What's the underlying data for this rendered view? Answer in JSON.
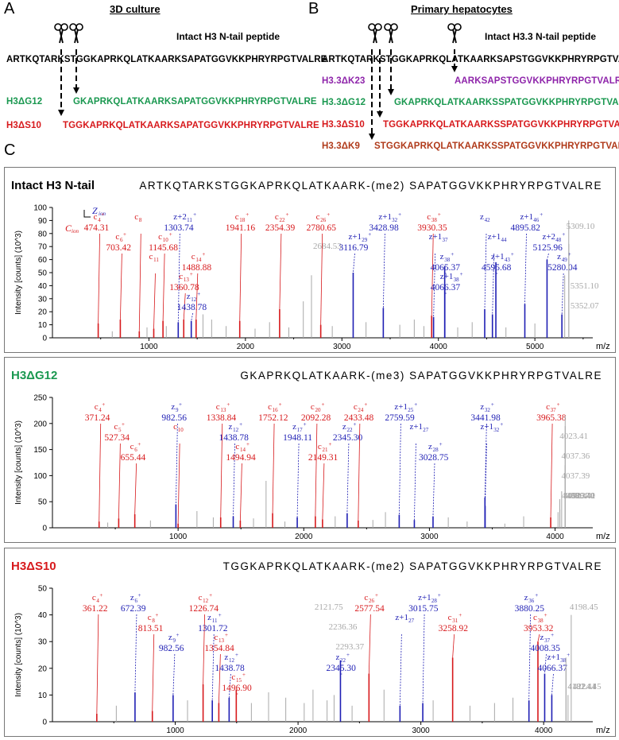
{
  "panelA": {
    "letter": "A",
    "title": "3D culture",
    "intact_label": "Intact H3 N-tail peptide",
    "sequence": "ARTKQTARKSTGGKAPRKQLATKAARKSAPATGGVKKPHRYRPGTVALRE",
    "rows": [
      {
        "label": "H3ΔG12",
        "seq": "GKAPRKQLATKAARKSAPATGGVKKPHRYRPGTVALRE",
        "color": "#1a9850"
      },
      {
        "label": "H3ΔS10",
        "seq": "TGGKAPRKQLATKAARKSAPATGGVKKPHRYRPGTVALRE",
        "color": "#d7191c"
      }
    ]
  },
  "panelB": {
    "letter": "B",
    "title": "Primary hepatocytes",
    "intact_label": "Intact H3.3 N-tail peptide",
    "sequence": "ARTKQTARKSTGGKAPRKQLATKAARKSAPSTGGVKKPHRYRPGTVALRE",
    "rows": [
      {
        "label": "H3.3ΔK23",
        "seq": "AARKSAPSTGGVKKPHRYRPGTVALRE",
        "color": "#8e24aa"
      },
      {
        "label": "H3.3ΔG12",
        "seq": "GKAPRKQLATKAARKSSPATGGVKKPHRYRPGTVALRE",
        "color": "#1a9850"
      },
      {
        "label": "H3.3ΔS10",
        "seq": "TGGKAPRKQLATKAARKSSPATGGVKKPHRYRPGTVALRE",
        "color": "#d7191c"
      },
      {
        "label": "H3.3ΔK9",
        "seq": "STGGKAPRKQLATKAARKSSPATGGVKKPHRYRPGTVALRE",
        "color": "#b03a1a"
      }
    ]
  },
  "panelC": {
    "letter": "C"
  },
  "colors": {
    "c_ion": "#d7191c",
    "z_ion": "#1f1fb4",
    "other": "#a8a8a8"
  },
  "chart_data": [
    {
      "type": "bar",
      "title": "Intact H3 N-tail",
      "title_color": "#000000",
      "sequence_annotation": "ARTKQTARKSTGGKAPRKQLATKAARK-(me2) SAPATGGVKKPHRYRPGTVALRE",
      "ylabel": "Intensity [counts] (10^3)",
      "xlabel": "m/z",
      "ylim": [
        0,
        100
      ],
      "yticks": [
        0,
        10,
        20,
        30,
        40,
        50,
        60,
        70,
        80,
        90,
        100
      ],
      "xlim": [
        0,
        5600
      ],
      "xticks": [
        1000,
        2000,
        3000,
        4000,
        5000
      ],
      "legend": {
        "c": "C",
        "c_sub": "ion",
        "z": "Z",
        "z_sub": "ion"
      },
      "peaks": [
        {
          "mz": 474.31,
          "i": 11,
          "t": "c",
          "name": "c",
          "sub": "4",
          "sup": "+"
        },
        {
          "mz": 703.42,
          "i": 14,
          "t": "c",
          "name": "c",
          "sub": "6",
          "sup": "+"
        },
        {
          "mz": 900,
          "i": 5,
          "t": "c",
          "name": "c",
          "sub": "8",
          "sup": ""
        },
        {
          "mz": 1050,
          "i": 7,
          "t": "c",
          "name": "c",
          "sub": "11",
          "sup": ""
        },
        {
          "mz": 1145.68,
          "i": 13,
          "t": "c",
          "name": "c",
          "sub": "10",
          "sup": "+"
        },
        {
          "mz": 1303.74,
          "i": 12,
          "t": "z",
          "name": "z+2",
          "sub": "11",
          "sup": "+"
        },
        {
          "mz": 1360.78,
          "i": 14,
          "t": "c",
          "name": "c",
          "sub": "13",
          "sup": "+"
        },
        {
          "mz": 1438.78,
          "i": 13,
          "t": "z",
          "name": "z",
          "sub": "12",
          "sup": "+"
        },
        {
          "mz": 1488.88,
          "i": 14,
          "t": "c",
          "name": "c",
          "sub": "14",
          "sup": "+"
        },
        {
          "mz": 1941.16,
          "i": 13,
          "t": "c",
          "name": "c",
          "sub": "18",
          "sup": "+"
        },
        {
          "mz": 2354.39,
          "i": 22,
          "t": "c",
          "name": "c",
          "sub": "22",
          "sup": "+"
        },
        {
          "mz": 2684.53,
          "i": 48,
          "t": "o",
          "name": "2684.53"
        },
        {
          "mz": 2780.65,
          "i": 10,
          "t": "c",
          "name": "c",
          "sub": "26",
          "sup": "+"
        },
        {
          "mz": 3116.79,
          "i": 50,
          "t": "z",
          "name": "z+1",
          "sub": "29",
          "sup": "+"
        },
        {
          "mz": 3428.98,
          "i": 23,
          "t": "z",
          "name": "z+1",
          "sub": "32",
          "sup": "+"
        },
        {
          "mz": 3930.35,
          "i": 17,
          "t": "c",
          "name": "c",
          "sub": "38",
          "sup": "+"
        },
        {
          "mz": 3950,
          "i": 16,
          "t": "z",
          "name": "z+1",
          "sub": "37",
          "sup": ""
        },
        {
          "mz": 4065.37,
          "i": 55,
          "t": "z",
          "name": "z",
          "sub": "38",
          "sup": "+"
        },
        {
          "mz": 4066.37,
          "i": 38,
          "t": "z",
          "name": "z+1",
          "sub": "38",
          "sup": "+"
        },
        {
          "mz": 4480,
          "i": 22,
          "t": "z",
          "name": "z",
          "sub": "42",
          "sup": ""
        },
        {
          "mz": 4560,
          "i": 18,
          "t": "z",
          "name": "z+1",
          "sub": "44",
          "sup": ""
        },
        {
          "mz": 4595.68,
          "i": 58,
          "t": "z",
          "name": "z+1",
          "sub": "43",
          "sup": "+"
        },
        {
          "mz": 4895.82,
          "i": 26,
          "t": "z",
          "name": "z+1",
          "sub": "46",
          "sup": "+"
        },
        {
          "mz": 5125.96,
          "i": 60,
          "t": "z",
          "name": "z+2",
          "sub": "48",
          "sup": "+"
        },
        {
          "mz": 5280.04,
          "i": 18,
          "t": "z",
          "name": "z",
          "sub": "49",
          "sup": "+"
        },
        {
          "mz": 5309.1,
          "i": 48,
          "t": "o",
          "name": "5309.10"
        },
        {
          "mz": 5351.1,
          "i": 90,
          "t": "o",
          "name": "5351.10"
        },
        {
          "mz": 5352.07,
          "i": 72,
          "t": "o",
          "name": "5352.07"
        }
      ],
      "noise": [
        [
          620,
          5
        ],
        [
          980,
          8
        ],
        [
          1180,
          9
        ],
        [
          1560,
          18
        ],
        [
          1650,
          14
        ],
        [
          1800,
          9
        ],
        [
          2100,
          7
        ],
        [
          2250,
          12
        ],
        [
          2450,
          8
        ],
        [
          2600,
          28
        ],
        [
          2900,
          9
        ],
        [
          3250,
          12
        ],
        [
          3600,
          10
        ],
        [
          3750,
          14
        ],
        [
          3850,
          9
        ],
        [
          4200,
          8
        ],
        [
          4350,
          12
        ],
        [
          4700,
          8
        ],
        [
          5000,
          11
        ]
      ]
    },
    {
      "type": "bar",
      "title": "H3ΔG12",
      "title_color": "#1a9850",
      "sequence_annotation": "GKAPRKQLATKAARK-(me3) SAPATGGVKKPHRYRPGTVALRE",
      "ylabel": "Intensity [counts] (10^3)",
      "xlabel": "m/z",
      "ylim": [
        0,
        250
      ],
      "yticks": [
        0,
        50,
        100,
        150,
        200,
        250
      ],
      "xlim": [
        0,
        4300
      ],
      "xticks": [
        1000,
        2000,
        3000,
        4000
      ],
      "peaks": [
        {
          "mz": 371.24,
          "i": 12,
          "t": "c",
          "name": "c",
          "sub": "4",
          "sup": "+"
        },
        {
          "mz": 527.34,
          "i": 18,
          "t": "c",
          "name": "c",
          "sub": "5",
          "sup": "+"
        },
        {
          "mz": 655.44,
          "i": 26,
          "t": "c",
          "name": "c",
          "sub": "6",
          "sup": "+"
        },
        {
          "mz": 982.56,
          "i": 45,
          "t": "z",
          "name": "z",
          "sub": "9",
          "sup": "+"
        },
        {
          "mz": 1000,
          "i": 8,
          "t": "c",
          "name": "c",
          "sub": "10",
          "sup": ""
        },
        {
          "mz": 1338.84,
          "i": 20,
          "t": "c",
          "name": "c",
          "sub": "13",
          "sup": "+"
        },
        {
          "mz": 1438.78,
          "i": 22,
          "t": "z",
          "name": "z",
          "sub": "12",
          "sup": "+"
        },
        {
          "mz": 1494.94,
          "i": 14,
          "t": "c",
          "name": "c",
          "sub": "14",
          "sup": "+"
        },
        {
          "mz": 1752.12,
          "i": 28,
          "t": "c",
          "name": "c",
          "sub": "16",
          "sup": "+"
        },
        {
          "mz": 1948.11,
          "i": 20,
          "t": "z",
          "name": "z",
          "sub": "17",
          "sup": "+"
        },
        {
          "mz": 2092.28,
          "i": 22,
          "t": "c",
          "name": "c",
          "sub": "20",
          "sup": "+"
        },
        {
          "mz": 2149.31,
          "i": 16,
          "t": "c",
          "name": "c",
          "sub": "21",
          "sup": "+"
        },
        {
          "mz": 2345.3,
          "i": 28,
          "t": "z",
          "name": "z",
          "sub": "22",
          "sup": "+"
        },
        {
          "mz": 2433.48,
          "i": 14,
          "t": "c",
          "name": "c",
          "sub": "24",
          "sup": "+"
        },
        {
          "mz": 2759.59,
          "i": 25,
          "t": "z",
          "name": "z+1",
          "sub": "25",
          "sup": "+"
        },
        {
          "mz": 2880,
          "i": 15,
          "t": "z",
          "name": "z+1",
          "sub": "27",
          "sup": ""
        },
        {
          "mz": 3028.75,
          "i": 22,
          "t": "z",
          "name": "z",
          "sub": "28",
          "sup": "+"
        },
        {
          "mz": 3441.98,
          "i": 58,
          "t": "z",
          "name": "z",
          "sub": "32",
          "sup": "+"
        },
        {
          "mz": 3443.0,
          "i": 42,
          "t": "z",
          "name": "z+1",
          "sub": "32",
          "sup": "+"
        },
        {
          "mz": 3965.38,
          "i": 20,
          "t": "c",
          "name": "c",
          "sub": "37",
          "sup": "+"
        },
        {
          "mz": 4023.41,
          "i": 30,
          "t": "o",
          "name": "4023.41"
        },
        {
          "mz": 4037.36,
          "i": 55,
          "t": "o",
          "name": "4037.36"
        },
        {
          "mz": 4037.39,
          "i": 52,
          "t": "o",
          "name": "4037.39"
        },
        {
          "mz": 4038.37,
          "i": 35,
          "t": "o",
          "name": "4038.37"
        },
        {
          "mz": 4052.4,
          "i": 70,
          "t": "o",
          "name": "4052.40"
        },
        {
          "mz": 4079.4,
          "i": 120,
          "t": "o",
          "name": "4079.40"
        },
        {
          "mz": 4080.41,
          "i": 215,
          "t": "o",
          "name": "4080.41"
        },
        {
          "mz": 4080.42,
          "i": 195,
          "t": "o",
          "name": "4080.42"
        }
      ],
      "noise": [
        [
          440,
          10
        ],
        [
          780,
          14
        ],
        [
          1150,
          32
        ],
        [
          1280,
          20
        ],
        [
          1600,
          18
        ],
        [
          1700,
          90
        ],
        [
          1850,
          12
        ],
        [
          2250,
          22
        ],
        [
          2550,
          15
        ],
        [
          2650,
          30
        ],
        [
          3150,
          20
        ],
        [
          3300,
          12
        ],
        [
          3600,
          8
        ],
        [
          3750,
          22
        ]
      ]
    },
    {
      "type": "bar",
      "title": "H3ΔS10",
      "title_color": "#d7191c",
      "sequence_annotation": "TGGKAPRKQLATKAARK-(me2) SAPATGGVKKPHRYRPGTVALRE",
      "ylabel": "Intensity [counts] (10^3)",
      "xlabel": "m/z",
      "ylim": [
        0,
        50
      ],
      "yticks": [
        0,
        10,
        20,
        30,
        40,
        50
      ],
      "xlim": [
        0,
        4400
      ],
      "xticks": [
        1000,
        2000,
        3000,
        4000
      ],
      "peaks": [
        {
          "mz": 361.22,
          "i": 3,
          "t": "c",
          "name": "c",
          "sub": "4",
          "sup": "+"
        },
        {
          "mz": 672.39,
          "i": 11,
          "t": "z",
          "name": "z",
          "sub": "6",
          "sup": "+"
        },
        {
          "mz": 813.51,
          "i": 4,
          "t": "c",
          "name": "c",
          "sub": "8",
          "sup": "+"
        },
        {
          "mz": 982.56,
          "i": 10,
          "t": "z",
          "name": "z",
          "sub": "9",
          "sup": "+"
        },
        {
          "mz": 1226.74,
          "i": 14,
          "t": "c",
          "name": "c",
          "sub": "12",
          "sup": "+"
        },
        {
          "mz": 1301.72,
          "i": 8,
          "t": "z",
          "name": "z",
          "sub": "11",
          "sup": "+"
        },
        {
          "mz": 1354.84,
          "i": 7,
          "t": "c",
          "name": "c",
          "sub": "13",
          "sup": "+"
        },
        {
          "mz": 1438.78,
          "i": 9,
          "t": "z",
          "name": "z",
          "sub": "12",
          "sup": "+"
        },
        {
          "mz": 1496.9,
          "i": 12,
          "t": "c",
          "name": "c",
          "sub": "15",
          "sup": "+"
        },
        {
          "mz": 2121.75,
          "i": 12,
          "t": "o",
          "name": "2121.75"
        },
        {
          "mz": 2236.36,
          "i": 8,
          "t": "o",
          "name": "2236.36"
        },
        {
          "mz": 2293.37,
          "i": 10,
          "t": "o",
          "name": "2293.37"
        },
        {
          "mz": 2345.3,
          "i": 23,
          "t": "z",
          "name": "z",
          "sub": "22",
          "sup": "+"
        },
        {
          "mz": 2577.54,
          "i": 18,
          "t": "c",
          "name": "c",
          "sub": "26",
          "sup": "+"
        },
        {
          "mz": 2830,
          "i": 6,
          "t": "z",
          "name": "z+1",
          "sub": "27",
          "sup": ""
        },
        {
          "mz": 3015.75,
          "i": 7,
          "t": "z",
          "name": "z+1",
          "sub": "28",
          "sup": "+"
        },
        {
          "mz": 3258.92,
          "i": 24,
          "t": "c",
          "name": "c",
          "sub": "31",
          "sup": "+"
        },
        {
          "mz": 3880.25,
          "i": 8,
          "t": "z",
          "name": "z",
          "sub": "36",
          "sup": "+"
        },
        {
          "mz": 3953.32,
          "i": 30,
          "t": "c",
          "name": "c",
          "sub": "38",
          "sup": "+"
        },
        {
          "mz": 4008.35,
          "i": 18,
          "t": "z",
          "name": "z",
          "sub": "37",
          "sup": "+"
        },
        {
          "mz": 4066.37,
          "i": 10,
          "t": "z",
          "name": "z+1",
          "sub": "38",
          "sup": "+"
        },
        {
          "mz": 4181.44,
          "i": 24,
          "t": "o",
          "name": "4181.44"
        },
        {
          "mz": 4182.41,
          "i": 20,
          "t": "o",
          "name": "4182.41"
        },
        {
          "mz": 4198.45,
          "i": 10,
          "t": "o",
          "name": "4198.45"
        },
        {
          "mz": 4224.45,
          "i": 40,
          "t": "o",
          "name": "4224.45"
        }
      ],
      "noise": [
        [
          520,
          6
        ],
        [
          1100,
          8
        ],
        [
          1620,
          7
        ],
        [
          1760,
          11
        ],
        [
          1900,
          9
        ],
        [
          2050,
          7
        ],
        [
          2440,
          6
        ],
        [
          2700,
          12
        ],
        [
          3100,
          8
        ],
        [
          3400,
          6
        ],
        [
          3600,
          7
        ],
        [
          3750,
          9
        ]
      ]
    }
  ]
}
